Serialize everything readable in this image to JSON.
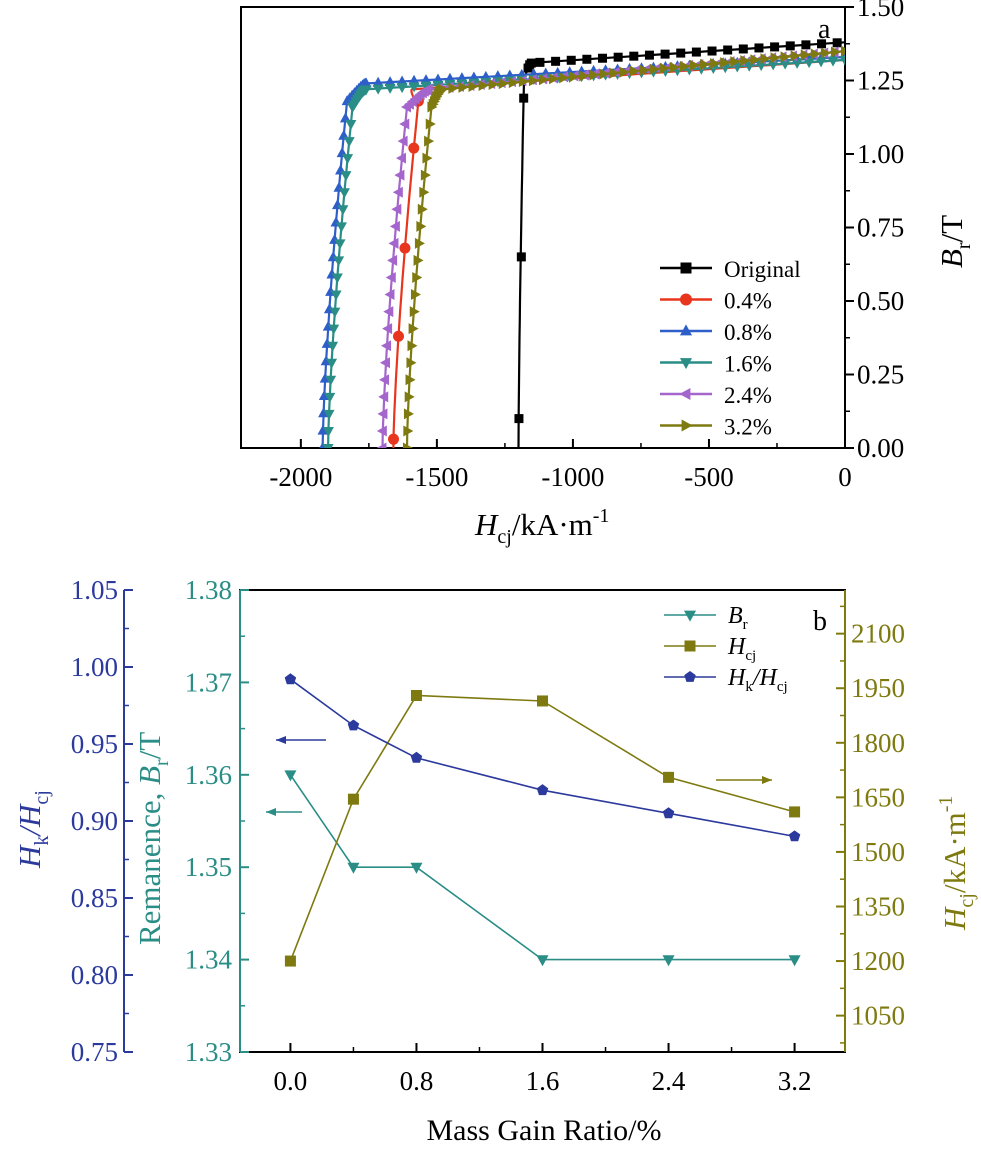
{
  "chart_data": [
    {
      "type": "line",
      "panel_label": "a",
      "xlabel": {
        "main": "H",
        "sub": "cj",
        "rest": "/kA·m",
        "sup": "-1"
      },
      "ylabel": {
        "main": "B",
        "sub": "r",
        "rest": "/T"
      },
      "xlim": [
        -2220,
        0
      ],
      "ylim": [
        0,
        1.5
      ],
      "x_ticks": [
        -2000,
        -1500,
        -1000,
        -500,
        0
      ],
      "x_tick_labels": [
        "-2000",
        "-1500",
        "-1000",
        "-500",
        "0"
      ],
      "y_ticks": [
        0,
        0.25,
        0.5,
        0.75,
        1.0,
        1.25,
        1.5
      ],
      "y_tick_labels": [
        "0.00",
        "0.25",
        "0.50",
        "0.75",
        "1.00",
        "1.25",
        "1.50"
      ],
      "legend_position": "bottom-right",
      "series": [
        {
          "name": "Original",
          "color": "#000000",
          "marker": "square",
          "hcj": -1200,
          "br0": 1.33,
          "knee": [
            -1180,
            1.31
          ],
          "top": [
            0,
            1.38
          ]
        },
        {
          "name": "0.4%",
          "color": "#e8351d",
          "marker": "circle",
          "hcj": -1660,
          "br0": 1.31,
          "knee": [
            -1620,
            1.22
          ],
          "top": [
            0,
            1.32
          ]
        },
        {
          "name": "0.8%",
          "color": "#2e5fc9",
          "marker": "triangle-up",
          "hcj": -1920,
          "br0": 1.32,
          "knee": [
            -1790,
            1.24
          ],
          "top": [
            0,
            1.33
          ]
        },
        {
          "name": "1.6%",
          "color": "#2a8d86",
          "marker": "triangle-down",
          "hcj": -1900,
          "br0": 1.31,
          "knee": [
            -1790,
            1.22
          ],
          "top": [
            0,
            1.32
          ]
        },
        {
          "name": "2.4%",
          "color": "#a466cc",
          "marker": "triangle-left",
          "hcj": -1700,
          "br0": 1.34,
          "knee": [
            -1560,
            1.22
          ],
          "top": [
            0,
            1.35
          ]
        },
        {
          "name": "3.2%",
          "color": "#7e7a10",
          "marker": "triangle-right",
          "hcj": -1610,
          "br0": 1.34,
          "knee": [
            -1510,
            1.22
          ],
          "top": [
            0,
            1.35
          ]
        }
      ]
    },
    {
      "type": "line",
      "panel_label": "b",
      "xlabel": "Mass Gain Ratio/%",
      "x_tick_labels": [
        "0.0",
        "0.8",
        "1.6",
        "2.4",
        "3.2"
      ],
      "x_ticks": [
        0,
        0.8,
        1.6,
        2.4,
        3.2
      ],
      "xlim": [
        -0.32,
        3.52
      ],
      "axes": {
        "hk": {
          "label_main": "H",
          "label_sub": "k",
          "label_mid": "/H",
          "label_sub2": "cj",
          "ylim": [
            0.75,
            1.05
          ],
          "ticks": [
            0.75,
            0.8,
            0.85,
            0.9,
            0.95,
            1.0,
            1.05
          ],
          "tick_labels": [
            "0.75",
            "0.80",
            "0.85",
            "0.90",
            "0.95",
            "1.00",
            "1.05"
          ],
          "color": "#2b3a9c"
        },
        "br": {
          "label_pre": "Remanence, ",
          "label_main": "B",
          "label_sub": "r",
          "label_post": "/T",
          "ylim": [
            1.33,
            1.38
          ],
          "ticks": [
            1.33,
            1.34,
            1.35,
            1.36,
            1.37,
            1.38
          ],
          "tick_labels": [
            "1.33",
            "1.34",
            "1.35",
            "1.36",
            "1.37",
            "1.38"
          ],
          "color": "#2a8d86"
        },
        "hcj": {
          "label_main": "H",
          "label_sub": "cj",
          "label_post": "/kA·m",
          "label_sup": "-1",
          "ylim": [
            950,
            2220
          ],
          "ticks": [
            1050,
            1200,
            1350,
            1500,
            1650,
            1800,
            1950,
            2100
          ],
          "tick_labels": [
            "1050",
            "1200",
            "1350",
            "1500",
            "1650",
            "1800",
            "1950",
            "2100"
          ],
          "color": "#7e7a10"
        }
      },
      "legend_position": "top-right",
      "series": [
        {
          "name_main": "B",
          "name_sub": "r",
          "axis": "br",
          "marker": "triangle-down",
          "color": "#2a8d86",
          "x": [
            0,
            0.4,
            0.8,
            1.6,
            2.4,
            3.2
          ],
          "y": [
            1.36,
            1.35,
            1.35,
            1.34,
            1.34,
            1.34
          ]
        },
        {
          "name_main": "H",
          "name_sub": "cj",
          "axis": "hcj",
          "marker": "square",
          "color": "#7e7a10",
          "x": [
            0,
            0.4,
            0.8,
            1.6,
            2.4,
            3.2
          ],
          "y": [
            1200,
            1645,
            1930,
            1915,
            1705,
            1610
          ]
        },
        {
          "name_main": "H",
          "name_sub": "k",
          "name_mid": "/H",
          "name_sub2": "cj",
          "axis": "hk",
          "marker": "pentagon",
          "color": "#2b3a9c",
          "x": [
            0,
            0.4,
            0.8,
            1.6,
            2.4,
            3.2
          ],
          "y": [
            0.992,
            0.962,
            0.941,
            0.92,
            0.905,
            0.89
          ]
        }
      ]
    }
  ]
}
